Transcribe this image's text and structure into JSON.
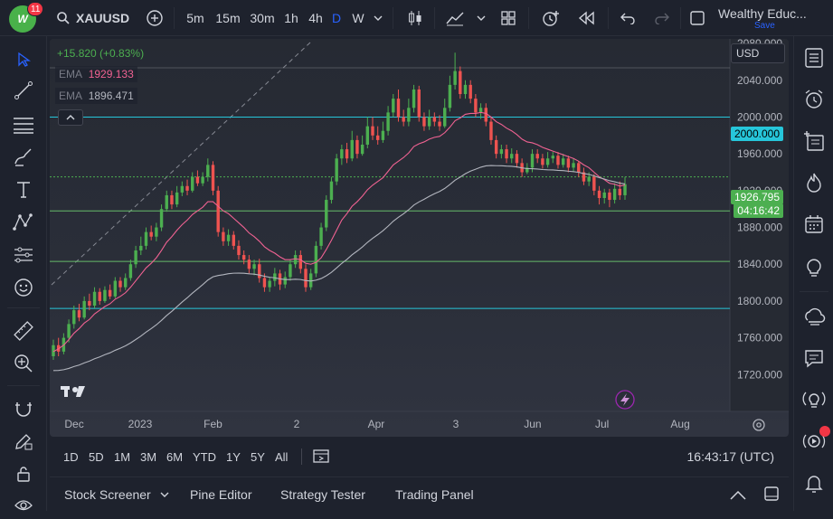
{
  "topbar": {
    "notification_count": "11",
    "logo_text": "W",
    "symbol": "XAUUSD",
    "intervals": [
      "5m",
      "15m",
      "30m",
      "1h",
      "4h",
      "D",
      "W"
    ],
    "active_interval": "D",
    "account_name": "Wealthy Educ...",
    "save_label": "Save"
  },
  "legend": {
    "change": "+15.820 (+0.83%)",
    "ema1_label": "EMA",
    "ema1_value": "1929.133",
    "ema2_label": "EMA",
    "ema2_value": "1896.471",
    "collapse_icon": "chevron-up-icon"
  },
  "currency": "USD",
  "price_axis": {
    "ticks": [
      "2080.000",
      "2040.000",
      "2000.000",
      "1960.000",
      "1920.000",
      "1880.000",
      "1840.000",
      "1800.000",
      "1760.000",
      "1720.000"
    ],
    "hline_label": "2000.000",
    "current_price": "1926.795",
    "countdown": "04:16:42"
  },
  "time_axis": [
    "Dec",
    "2023",
    "Feb",
    "2",
    "Apr",
    "3",
    "Jun",
    "Jul",
    "Aug"
  ],
  "range_buttons": [
    "1D",
    "5D",
    "1M",
    "3M",
    "6M",
    "YTD",
    "1Y",
    "5Y",
    "All"
  ],
  "clock": "16:43:17 (UTC)",
  "bottom_tabs": [
    "Stock Screener",
    "Pine Editor",
    "Strategy Tester",
    "Trading Panel"
  ],
  "watermark": "17",
  "colors": {
    "up": "#26a69a",
    "up_bright": "#4caf50",
    "down": "#ef5350",
    "ema_fast": "#f06292",
    "ema_slow": "#b2b5be",
    "hline_cyan": "#26c6da",
    "hline_green": "#66bb6a",
    "accent": "#2962ff"
  },
  "chart_data": {
    "type": "candlestick",
    "symbol": "XAUUSD",
    "interval": "D",
    "ylim": [
      1680,
      2085
    ],
    "horizontal_levels": [
      2000,
      1935,
      1898,
      1843,
      1792
    ],
    "candles_open_close_high_low": [
      [
        1740,
        1752,
        1758,
        1736
      ],
      [
        1752,
        1745,
        1760,
        1740
      ],
      [
        1745,
        1760,
        1765,
        1742
      ],
      [
        1760,
        1775,
        1780,
        1755
      ],
      [
        1775,
        1790,
        1795,
        1770
      ],
      [
        1790,
        1782,
        1797,
        1778
      ],
      [
        1782,
        1800,
        1805,
        1780
      ],
      [
        1800,
        1795,
        1808,
        1790
      ],
      [
        1795,
        1810,
        1815,
        1792
      ],
      [
        1810,
        1800,
        1814,
        1796
      ],
      [
        1800,
        1812,
        1816,
        1798
      ],
      [
        1812,
        1805,
        1818,
        1802
      ],
      [
        1805,
        1822,
        1826,
        1803
      ],
      [
        1822,
        1815,
        1826,
        1810
      ],
      [
        1815,
        1825,
        1830,
        1812
      ],
      [
        1825,
        1840,
        1845,
        1822
      ],
      [
        1840,
        1855,
        1860,
        1836
      ],
      [
        1855,
        1860,
        1870,
        1850
      ],
      [
        1860,
        1875,
        1880,
        1856
      ],
      [
        1875,
        1870,
        1882,
        1866
      ],
      [
        1870,
        1880,
        1885,
        1865
      ],
      [
        1880,
        1900,
        1905,
        1876
      ],
      [
        1900,
        1915,
        1920,
        1897
      ],
      [
        1915,
        1905,
        1920,
        1900
      ],
      [
        1905,
        1918,
        1925,
        1902
      ],
      [
        1918,
        1925,
        1930,
        1914
      ],
      [
        1925,
        1920,
        1932,
        1915
      ],
      [
        1920,
        1935,
        1940,
        1918
      ],
      [
        1935,
        1928,
        1942,
        1925
      ],
      [
        1928,
        1935,
        1940,
        1925
      ],
      [
        1935,
        1948,
        1955,
        1930
      ],
      [
        1948,
        1920,
        1952,
        1915
      ],
      [
        1920,
        1875,
        1925,
        1870
      ],
      [
        1875,
        1865,
        1880,
        1860
      ],
      [
        1865,
        1872,
        1878,
        1860
      ],
      [
        1872,
        1860,
        1876,
        1856
      ],
      [
        1860,
        1850,
        1866,
        1845
      ],
      [
        1850,
        1845,
        1855,
        1840
      ],
      [
        1845,
        1835,
        1850,
        1830
      ],
      [
        1835,
        1840,
        1845,
        1828
      ],
      [
        1840,
        1825,
        1846,
        1820
      ],
      [
        1825,
        1815,
        1830,
        1810
      ],
      [
        1815,
        1822,
        1826,
        1810
      ],
      [
        1822,
        1830,
        1836,
        1816
      ],
      [
        1830,
        1818,
        1834,
        1812
      ],
      [
        1818,
        1826,
        1832,
        1814
      ],
      [
        1826,
        1840,
        1845,
        1822
      ],
      [
        1840,
        1850,
        1855,
        1836
      ],
      [
        1850,
        1835,
        1855,
        1830
      ],
      [
        1835,
        1815,
        1840,
        1810
      ],
      [
        1815,
        1830,
        1835,
        1812
      ],
      [
        1830,
        1860,
        1865,
        1826
      ],
      [
        1860,
        1880,
        1885,
        1856
      ],
      [
        1880,
        1910,
        1915,
        1876
      ],
      [
        1910,
        1930,
        1935,
        1906
      ],
      [
        1930,
        1955,
        1960,
        1926
      ],
      [
        1955,
        1965,
        1970,
        1948
      ],
      [
        1965,
        1955,
        1972,
        1950
      ],
      [
        1955,
        1975,
        1985,
        1952
      ],
      [
        1975,
        1960,
        1980,
        1955
      ],
      [
        1960,
        1970,
        1980,
        1958
      ],
      [
        1970,
        1990,
        2000,
        1966
      ],
      [
        1990,
        1980,
        2000,
        1975
      ],
      [
        1980,
        1975,
        1990,
        1970
      ],
      [
        1975,
        1985,
        1995,
        1972
      ],
      [
        1985,
        2005,
        2012,
        1980
      ],
      [
        2005,
        2020,
        2025,
        2000
      ],
      [
        2020,
        2000,
        2030,
        1995
      ],
      [
        2000,
        1995,
        2008,
        1990
      ],
      [
        1995,
        2010,
        2020,
        1990
      ],
      [
        2010,
        2030,
        2035,
        2005
      ],
      [
        2030,
        2000,
        2034,
        1995
      ],
      [
        2000,
        1990,
        2005,
        1985
      ],
      [
        1990,
        2000,
        2008,
        1986
      ],
      [
        2000,
        1995,
        2005,
        1990
      ],
      [
        1995,
        1990,
        2002,
        1985
      ],
      [
        1990,
        2010,
        2020,
        1988
      ],
      [
        2010,
        2035,
        2045,
        2006
      ],
      [
        2035,
        2050,
        2070,
        2030
      ],
      [
        2050,
        2025,
        2055,
        2020
      ],
      [
        2025,
        2035,
        2040,
        2020
      ],
      [
        2035,
        2020,
        2040,
        2015
      ],
      [
        2020,
        2005,
        2025,
        2000
      ],
      [
        2005,
        2010,
        2015,
        1998
      ],
      [
        2010,
        1995,
        2015,
        1990
      ],
      [
        1995,
        1975,
        2000,
        1970
      ],
      [
        1975,
        1960,
        1980,
        1955
      ],
      [
        1960,
        1965,
        1970,
        1955
      ],
      [
        1965,
        1955,
        1970,
        1950
      ],
      [
        1955,
        1960,
        1966,
        1950
      ],
      [
        1960,
        1950,
        1964,
        1945
      ],
      [
        1950,
        1940,
        1955,
        1935
      ],
      [
        1940,
        1945,
        1950,
        1938
      ],
      [
        1945,
        1960,
        1965,
        1940
      ],
      [
        1960,
        1955,
        1965,
        1950
      ],
      [
        1955,
        1948,
        1960,
        1944
      ],
      [
        1948,
        1955,
        1962,
        1945
      ],
      [
        1955,
        1958,
        1962,
        1950
      ],
      [
        1958,
        1948,
        1962,
        1944
      ],
      [
        1948,
        1955,
        1960,
        1945
      ],
      [
        1955,
        1945,
        1958,
        1940
      ],
      [
        1945,
        1950,
        1955,
        1940
      ],
      [
        1950,
        1940,
        1952,
        1935
      ],
      [
        1940,
        1930,
        1945,
        1926
      ],
      [
        1930,
        1935,
        1940,
        1925
      ],
      [
        1935,
        1920,
        1938,
        1915
      ],
      [
        1920,
        1912,
        1925,
        1905
      ],
      [
        1912,
        1918,
        1922,
        1906
      ],
      [
        1918,
        1910,
        1922,
        1902
      ],
      [
        1910,
        1922,
        1928,
        1906
      ],
      [
        1922,
        1915,
        1930,
        1910
      ],
      [
        1915,
        1927,
        1935,
        1910
      ]
    ],
    "ema_fast": [
      1745,
      1748,
      1752,
      1758,
      1765,
      1770,
      1776,
      1780,
      1786,
      1790,
      1794,
      1797,
      1802,
      1805,
      1809,
      1815,
      1822,
      1829,
      1836,
      1841,
      1847,
      1855,
      1864,
      1870,
      1877,
      1883,
      1888,
      1894,
      1898,
      1902,
      1908,
      1908,
      1903,
      1898,
      1895,
      1890,
      1885,
      1880,
      1874,
      1870,
      1865,
      1859,
      1855,
      1852,
      1848,
      1845,
      1845,
      1846,
      1845,
      1841,
      1840,
      1842,
      1847,
      1856,
      1866,
      1877,
      1888,
      1895,
      1903,
      1908,
      1914,
      1921,
      1926,
      1930,
      1934,
      1941,
      1948,
      1952,
      1956,
      1961,
      1968,
      1971,
      1973,
      1976,
      1978,
      1979,
      1983,
      1989,
      1996,
      1999,
      2003,
      2004,
      2004,
      2005,
      2004,
      2000,
      1995,
      1992,
      1988,
      1985,
      1981,
      1976,
      1973,
      1972,
      1970,
      1967,
      1965,
      1963,
      1961,
      1959,
      1957,
      1955,
      1952,
      1948,
      1945,
      1940,
      1935,
      1932,
      1928,
      1927,
      1925,
      1926
    ]
  }
}
